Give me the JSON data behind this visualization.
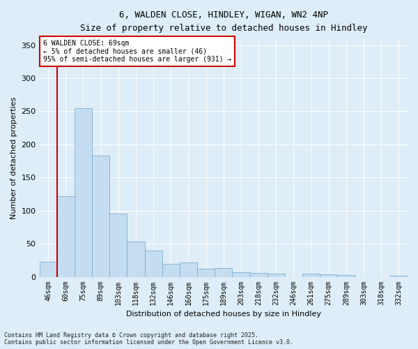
{
  "title_line1": "6, WALDEN CLOSE, HINDLEY, WIGAN, WN2 4NP",
  "title_line2": "Size of property relative to detached houses in Hindley",
  "xlabel": "Distribution of detached houses by size in Hindley",
  "ylabel": "Number of detached properties",
  "categories": [
    "46sqm",
    "60sqm",
    "75sqm",
    "89sqm",
    "103sqm",
    "118sqm",
    "132sqm",
    "146sqm",
    "160sqm",
    "175sqm",
    "189sqm",
    "203sqm",
    "218sqm",
    "232sqm",
    "246sqm",
    "261sqm",
    "275sqm",
    "289sqm",
    "303sqm",
    "318sqm",
    "332sqm"
  ],
  "values": [
    23,
    122,
    255,
    183,
    95,
    53,
    40,
    20,
    22,
    12,
    13,
    7,
    6,
    5,
    0,
    5,
    4,
    3,
    0,
    0,
    2
  ],
  "bar_color": "#c5ddf0",
  "bar_edge_color": "#7bafd4",
  "vline_color": "#cc0000",
  "vline_pos": 1.5,
  "annotation_text_line1": "6 WALDEN CLOSE: 69sqm",
  "annotation_text_line2": "← 5% of detached houses are smaller (46)",
  "annotation_text_line3": "95% of semi-detached houses are larger (931) →",
  "annotation_box_color": "#cc0000",
  "ylim": [
    0,
    360
  ],
  "yticks": [
    0,
    50,
    100,
    150,
    200,
    250,
    300,
    350
  ],
  "footer_line1": "Contains HM Land Registry data © Crown copyright and database right 2025.",
  "footer_line2": "Contains public sector information licensed under the Open Government Licence v3.0.",
  "bg_color": "#deedf7",
  "plot_bg_color": "#deedf7",
  "grid_color": "#ffffff"
}
